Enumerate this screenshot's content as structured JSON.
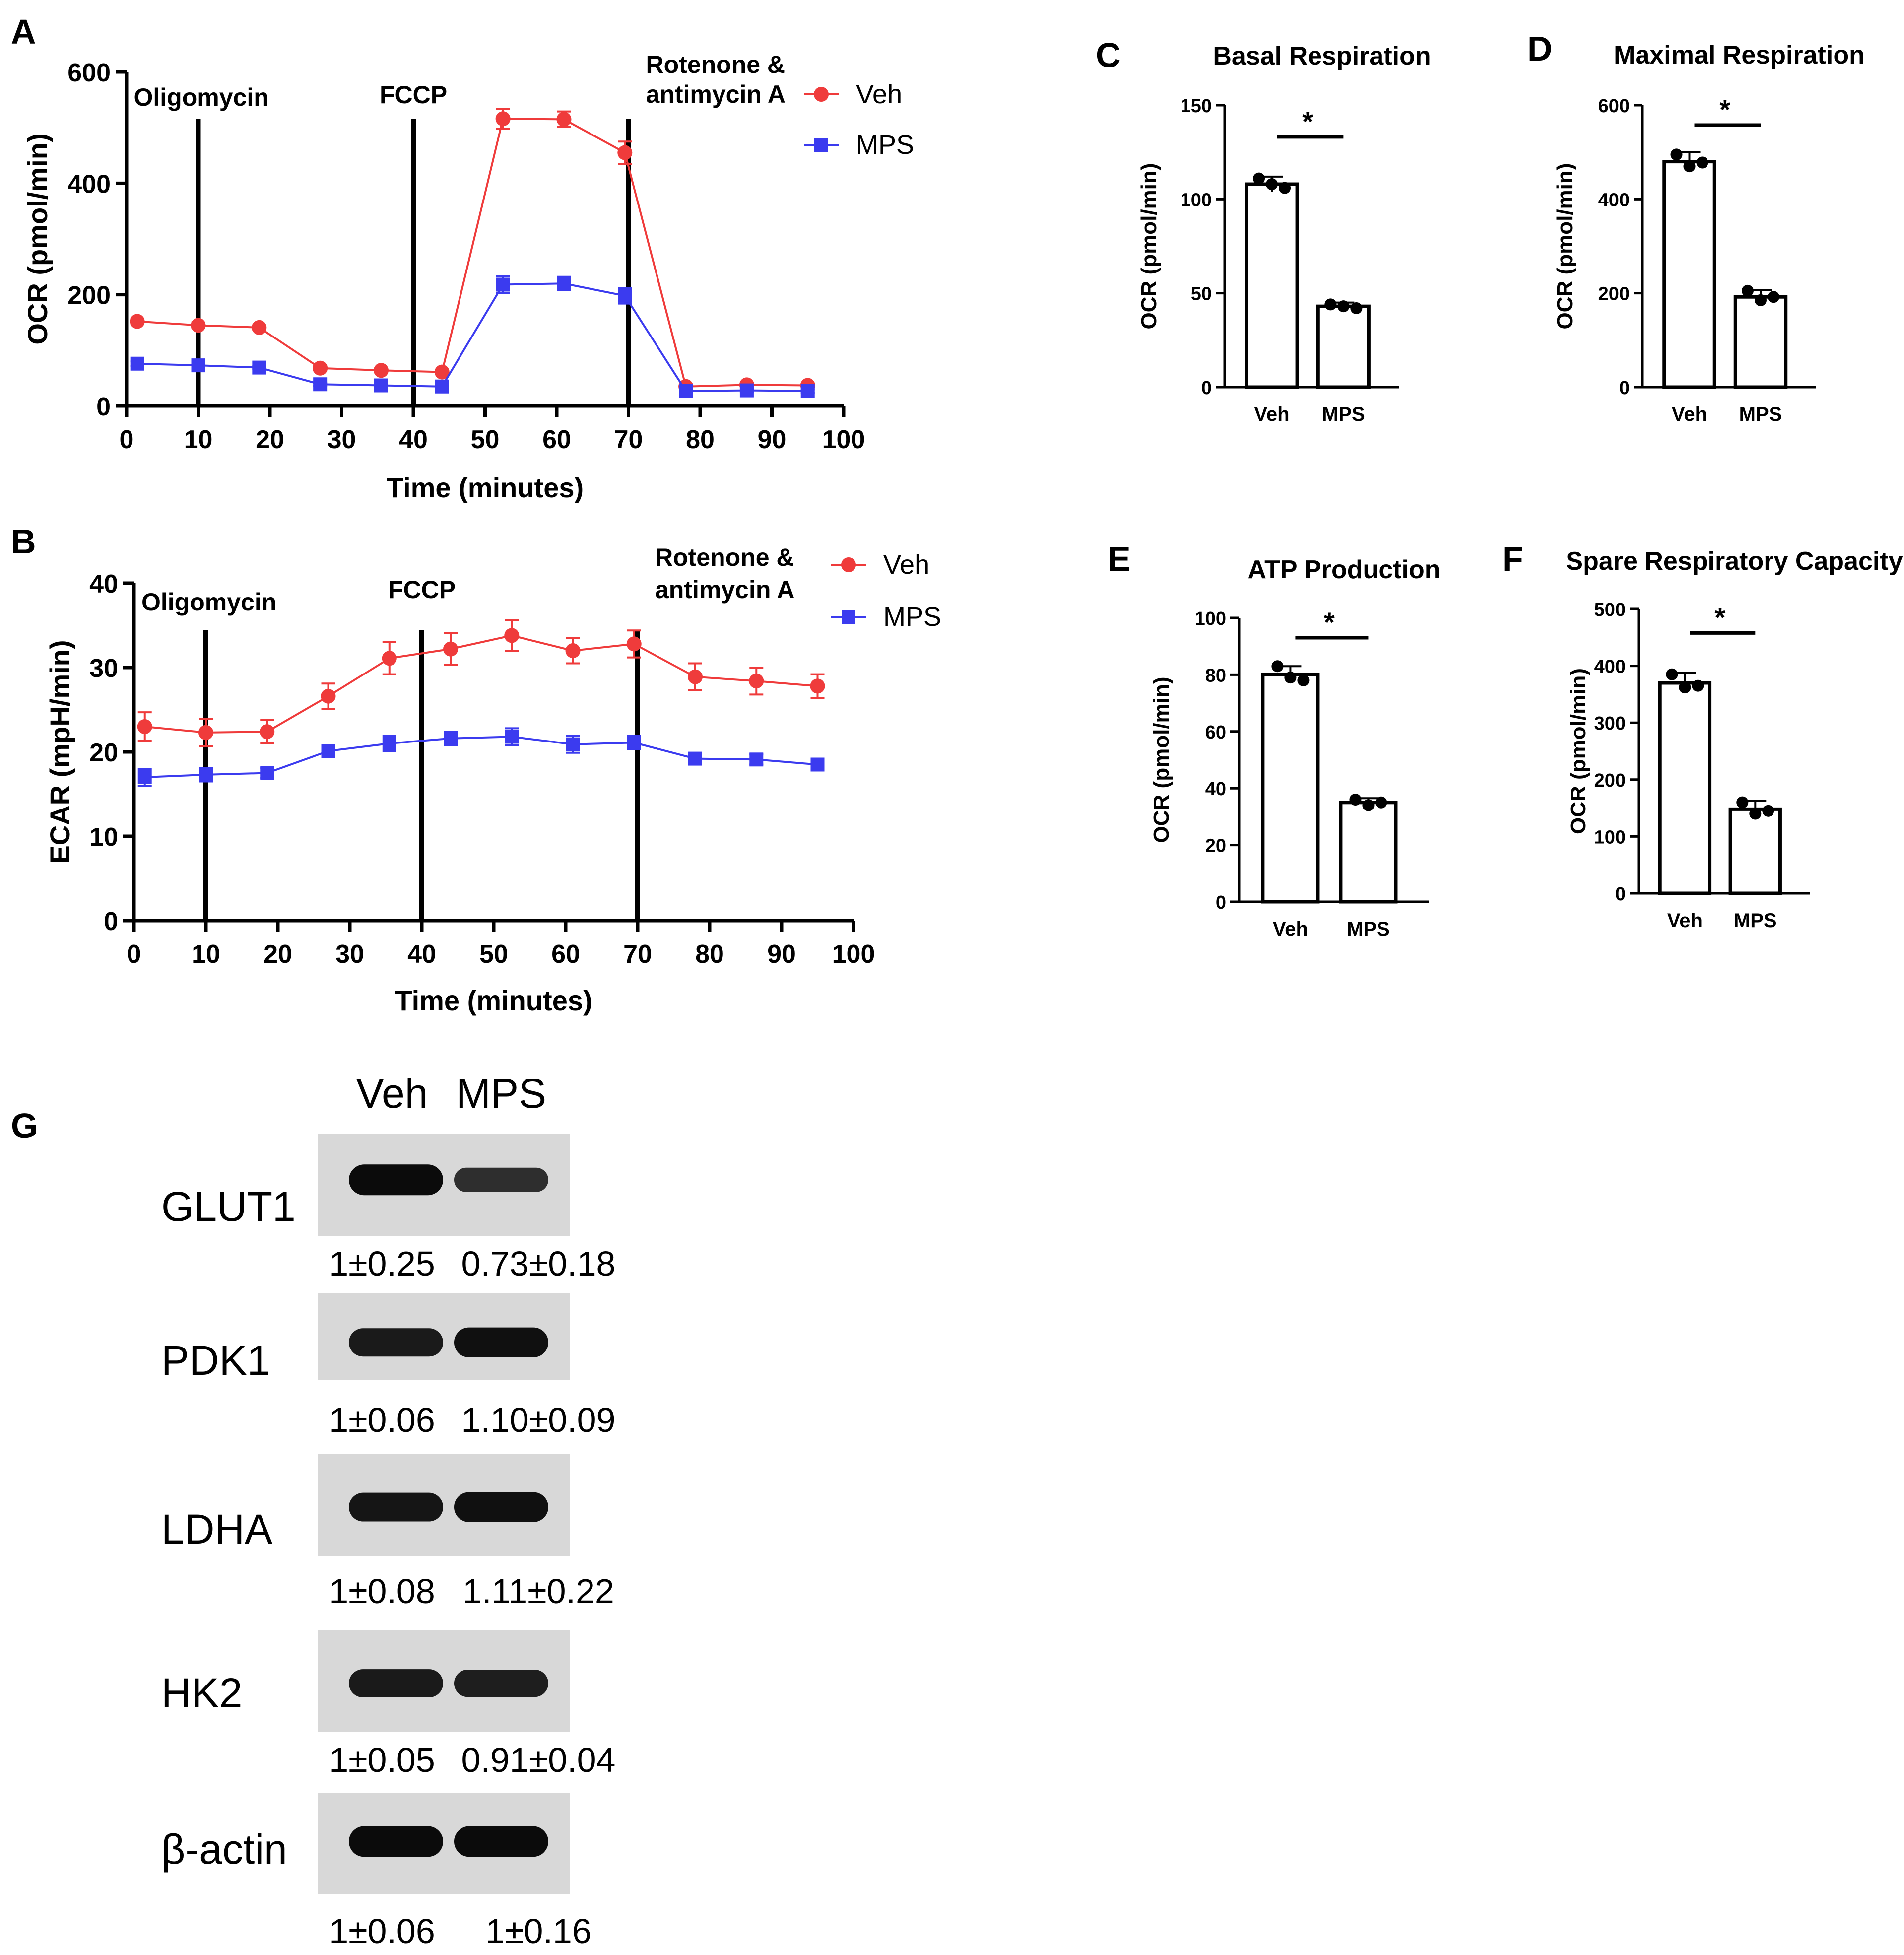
{
  "colors": {
    "veh": "#ef3b3b",
    "mps": "#3b3bef",
    "black": "#000000",
    "blot_bg": "#d8d8d8",
    "band": "#0b0b0b"
  },
  "chart_data": [
    {
      "id": "A",
      "panel_label": "A",
      "type": "line",
      "title": "",
      "xlabel": "Time (minutes)",
      "ylabel": "OCR (pmol/min)",
      "xlim": [
        0,
        100
      ],
      "ylim": [
        0,
        600
      ],
      "xticks": [
        0,
        10,
        20,
        30,
        40,
        50,
        60,
        70,
        80,
        90,
        100
      ],
      "yticks": [
        0,
        200,
        400,
        600
      ],
      "injections": [
        {
          "x": 10,
          "label": [
            "Oligomycin"
          ]
        },
        {
          "x": 40,
          "label": [
            "FCCP"
          ]
        },
        {
          "x": 70,
          "label": [
            "Rotenone &",
            "antimycin A"
          ]
        }
      ],
      "legend": [
        "Veh",
        "MPS"
      ],
      "legend_position": "top-right",
      "series": [
        {
          "name": "Veh",
          "marker": "circle",
          "x": [
            1.5,
            10,
            18.5,
            27,
            35.5,
            44,
            52.5,
            61,
            69.5,
            78,
            86.5,
            95
          ],
          "y": [
            152,
            145,
            141,
            68,
            64,
            61,
            516,
            515,
            455,
            35,
            38,
            37
          ],
          "err": [
            5,
            5,
            4,
            4,
            3,
            3,
            18,
            14,
            20,
            4,
            3,
            3
          ]
        },
        {
          "name": "MPS",
          "marker": "square",
          "x": [
            1.5,
            10,
            18.5,
            27,
            35.5,
            44,
            52.5,
            61,
            69.5,
            78,
            86.5,
            95
          ],
          "y": [
            76,
            73,
            69,
            39,
            37,
            35,
            218,
            220,
            198,
            27,
            28,
            27
          ],
          "err": [
            4,
            4,
            3,
            3,
            3,
            3,
            15,
            12,
            14,
            3,
            3,
            3
          ]
        }
      ]
    },
    {
      "id": "B",
      "panel_label": "B",
      "type": "line",
      "title": "",
      "xlabel": "Time (minutes)",
      "ylabel": "ECAR (mpH/min)",
      "xlim": [
        0,
        100
      ],
      "ylim": [
        0,
        40
      ],
      "xticks": [
        0,
        10,
        20,
        30,
        40,
        50,
        60,
        70,
        80,
        90,
        100
      ],
      "yticks": [
        0,
        10,
        20,
        30,
        40
      ],
      "injections": [
        {
          "x": 10,
          "label": [
            "Oligomycin"
          ]
        },
        {
          "x": 40,
          "label": [
            "FCCP"
          ]
        },
        {
          "x": 70,
          "label": [
            "Rotenone &",
            "antimycin A"
          ]
        }
      ],
      "legend": [
        "Veh",
        "MPS"
      ],
      "legend_position": "top-right",
      "series": [
        {
          "name": "Veh",
          "marker": "circle",
          "x": [
            1.5,
            10,
            18.5,
            27,
            35.5,
            44,
            52.5,
            61,
            69.5,
            78,
            86.5,
            95
          ],
          "y": [
            23,
            22.3,
            22.4,
            26.6,
            31.1,
            32.2,
            33.8,
            32,
            32.8,
            28.9,
            28.4,
            27.8
          ],
          "err": [
            1.7,
            1.6,
            1.4,
            1.5,
            1.9,
            1.9,
            1.8,
            1.5,
            1.6,
            1.6,
            1.6,
            1.4
          ]
        },
        {
          "name": "MPS",
          "marker": "square",
          "x": [
            1.5,
            10,
            18.5,
            27,
            35.5,
            44,
            52.5,
            61,
            69.5,
            78,
            86.5,
            95
          ],
          "y": [
            17,
            17.3,
            17.5,
            20.1,
            21,
            21.6,
            21.8,
            20.9,
            21.1,
            19.2,
            19.1,
            18.5
          ],
          "err": [
            1,
            0.8,
            0.6,
            0.7,
            0.9,
            0.8,
            1,
            1,
            0.8,
            0.6,
            0.6,
            0.6
          ]
        }
      ]
    },
    {
      "id": "C",
      "panel_label": "C",
      "type": "bar",
      "title": "Basal Respiration",
      "xlabel": "",
      "ylabel": "OCR (pmol/min)",
      "ylim": [
        0,
        150
      ],
      "yticks": [
        0,
        50,
        100,
        150
      ],
      "categories": [
        "Veh",
        "MPS"
      ],
      "values": [
        108,
        43
      ],
      "err": [
        4,
        2
      ],
      "points": [
        [
          111,
          108,
          106
        ],
        [
          44,
          43,
          42
        ]
      ],
      "significance": "*"
    },
    {
      "id": "D",
      "panel_label": "D",
      "type": "bar",
      "title": "Maximal Respiration",
      "xlabel": "",
      "ylabel": "OCR (pmol/min)",
      "ylim": [
        0,
        600
      ],
      "yticks": [
        0,
        200,
        400,
        600
      ],
      "categories": [
        "Veh",
        "MPS"
      ],
      "values": [
        480,
        192
      ],
      "err": [
        20,
        15
      ],
      "points": [
        [
          495,
          470,
          478
        ],
        [
          205,
          185,
          192
        ]
      ],
      "significance": "*"
    },
    {
      "id": "E",
      "panel_label": "E",
      "type": "bar",
      "title": "ATP Production",
      "xlabel": "",
      "ylabel": "OCR (pmol/min)",
      "ylim": [
        0,
        100
      ],
      "yticks": [
        0,
        20,
        40,
        60,
        80,
        100
      ],
      "categories": [
        "Veh",
        "MPS"
      ],
      "values": [
        80,
        35
      ],
      "err": [
        3,
        1.5
      ],
      "points": [
        [
          83,
          79,
          78
        ],
        [
          36,
          34,
          35
        ]
      ],
      "significance": "*"
    },
    {
      "id": "F",
      "panel_label": "F",
      "type": "bar",
      "title": "Spare Respiratory Capacity",
      "xlabel": "",
      "ylabel": "OCR (pmol/min)",
      "ylim": [
        0,
        500
      ],
      "yticks": [
        0,
        100,
        200,
        300,
        400,
        500
      ],
      "categories": [
        "Veh",
        "MPS"
      ],
      "values": [
        370,
        148
      ],
      "err": [
        18,
        15
      ],
      "points": [
        [
          385,
          362,
          365
        ],
        [
          160,
          140,
          145
        ]
      ],
      "significance": "*"
    }
  ],
  "western_blot": {
    "panel_label": "G",
    "lane_labels": [
      "Veh",
      "MPS"
    ],
    "rows": [
      {
        "protein": "GLUT1",
        "values": [
          "1±0.25",
          "0.73±0.18"
        ],
        "intensity": [
          1.0,
          0.62
        ]
      },
      {
        "protein": "PDK1",
        "values": [
          "1±0.06",
          "1.10±0.09"
        ],
        "intensity": [
          0.85,
          0.95
        ]
      },
      {
        "protein": "LDHA",
        "values": [
          "1±0.08",
          "1.11±0.22"
        ],
        "intensity": [
          0.88,
          0.95
        ]
      },
      {
        "protein": "HK2",
        "values": [
          "1±0.05",
          "0.91±0.04"
        ],
        "intensity": [
          0.85,
          0.8
        ]
      },
      {
        "protein": "β-actin",
        "values": [
          "1±0.06",
          "1±0.16"
        ],
        "intensity": [
          1.0,
          1.0
        ]
      }
    ]
  }
}
